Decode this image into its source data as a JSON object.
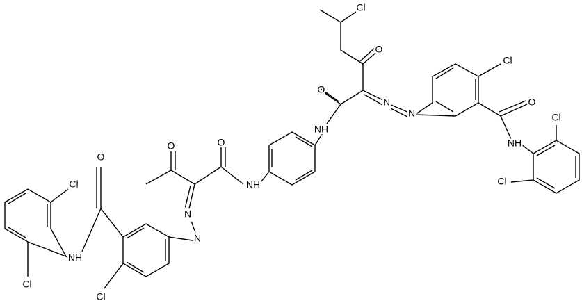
{
  "atoms": [
    "Cl",
    "O",
    "O",
    "NH",
    "N",
    "N",
    "Cl",
    "O",
    "NH",
    "Cl",
    "Cl",
    "O",
    "O",
    "NH",
    "N",
    "N",
    "O",
    "NH",
    "Cl",
    "Cl",
    "Cl"
  ]
}
